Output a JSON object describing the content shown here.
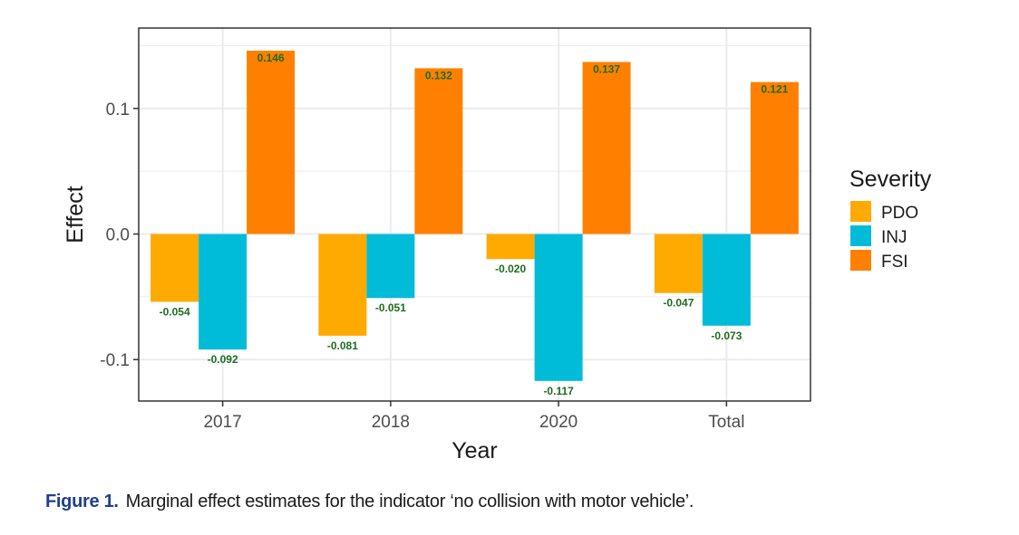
{
  "chart_data": {
    "type": "bar",
    "categories": [
      "2017",
      "2018",
      "2020",
      "Total"
    ],
    "series": [
      {
        "name": "PDO",
        "color": "#FFAA00",
        "values": [
          -0.054,
          -0.081,
          -0.02,
          -0.047
        ],
        "labels": [
          "-0.054",
          "-0.081",
          "-0.020",
          "-0.047"
        ]
      },
      {
        "name": "INJ",
        "color": "#00BCD8",
        "values": [
          -0.092,
          -0.051,
          -0.117,
          -0.073
        ],
        "labels": [
          "-0.092",
          "-0.051",
          "-0.117",
          "-0.073"
        ]
      },
      {
        "name": "FSI",
        "color": "#FF8000",
        "values": [
          0.146,
          0.132,
          0.137,
          0.121
        ],
        "labels": [
          "0.146",
          "0.132",
          "0.137",
          "0.121"
        ]
      }
    ],
    "xlabel": "Year",
    "ylabel": "Effect",
    "ylim": [
      -0.133,
      0.164
    ],
    "yticks": [
      -0.1,
      0.0,
      0.1
    ],
    "ytick_labels": [
      "-0.1",
      "0.0",
      "0.1"
    ],
    "grid": true,
    "legend": {
      "title": "Severity",
      "position": "right"
    },
    "data_label_color": "#1f6b1f",
    "panel_border_color": "#333333",
    "grid_color": "#ebebeb"
  },
  "caption": {
    "label": "Figure 1.",
    "text": "Marginal effect estimates for the indicator ‘no collision with motor vehicle’."
  }
}
